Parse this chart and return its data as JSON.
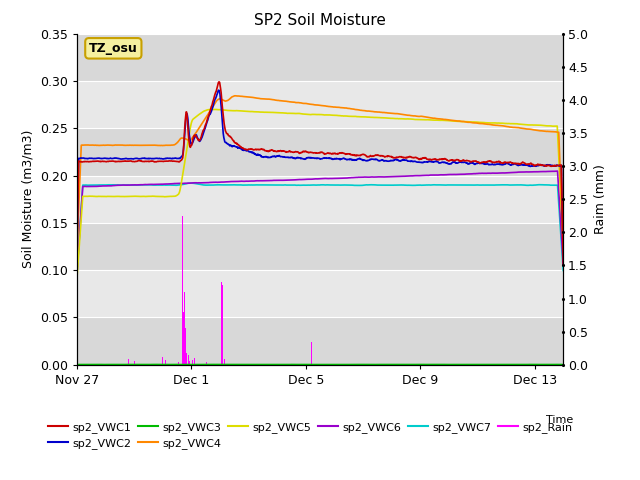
{
  "title": "SP2 Soil Moisture",
  "xlabel": "Time",
  "ylabel_left": "Soil Moisture (m3/m3)",
  "ylabel_right": "Raim (mm)",
  "ylim_left": [
    0,
    0.35
  ],
  "ylim_right": [
    0,
    5.0
  ],
  "x_ticks_labels": [
    "Nov 27",
    "Dec 1",
    "Dec 5",
    "Dec 9",
    "Dec 13"
  ],
  "x_ticks_pos": [
    0,
    4,
    8,
    12,
    16
  ],
  "bg_light": "#e8e8e8",
  "bg_dark": "#d0d0d0",
  "bg_white": "#f8f8f8",
  "annotation_text": "TZ_osu",
  "annotation_bg": "#f5f0a0",
  "annotation_border": "#c8a000",
  "series_colors": {
    "sp2_VWC1": "#cc0000",
    "sp2_VWC2": "#0000cc",
    "sp2_VWC3": "#00bb00",
    "sp2_VWC4": "#ff8800",
    "sp2_VWC5": "#dddd00",
    "sp2_VWC6": "#9900cc",
    "sp2_VWC7": "#00cccc",
    "sp2_Rain": "#ff00ff"
  }
}
